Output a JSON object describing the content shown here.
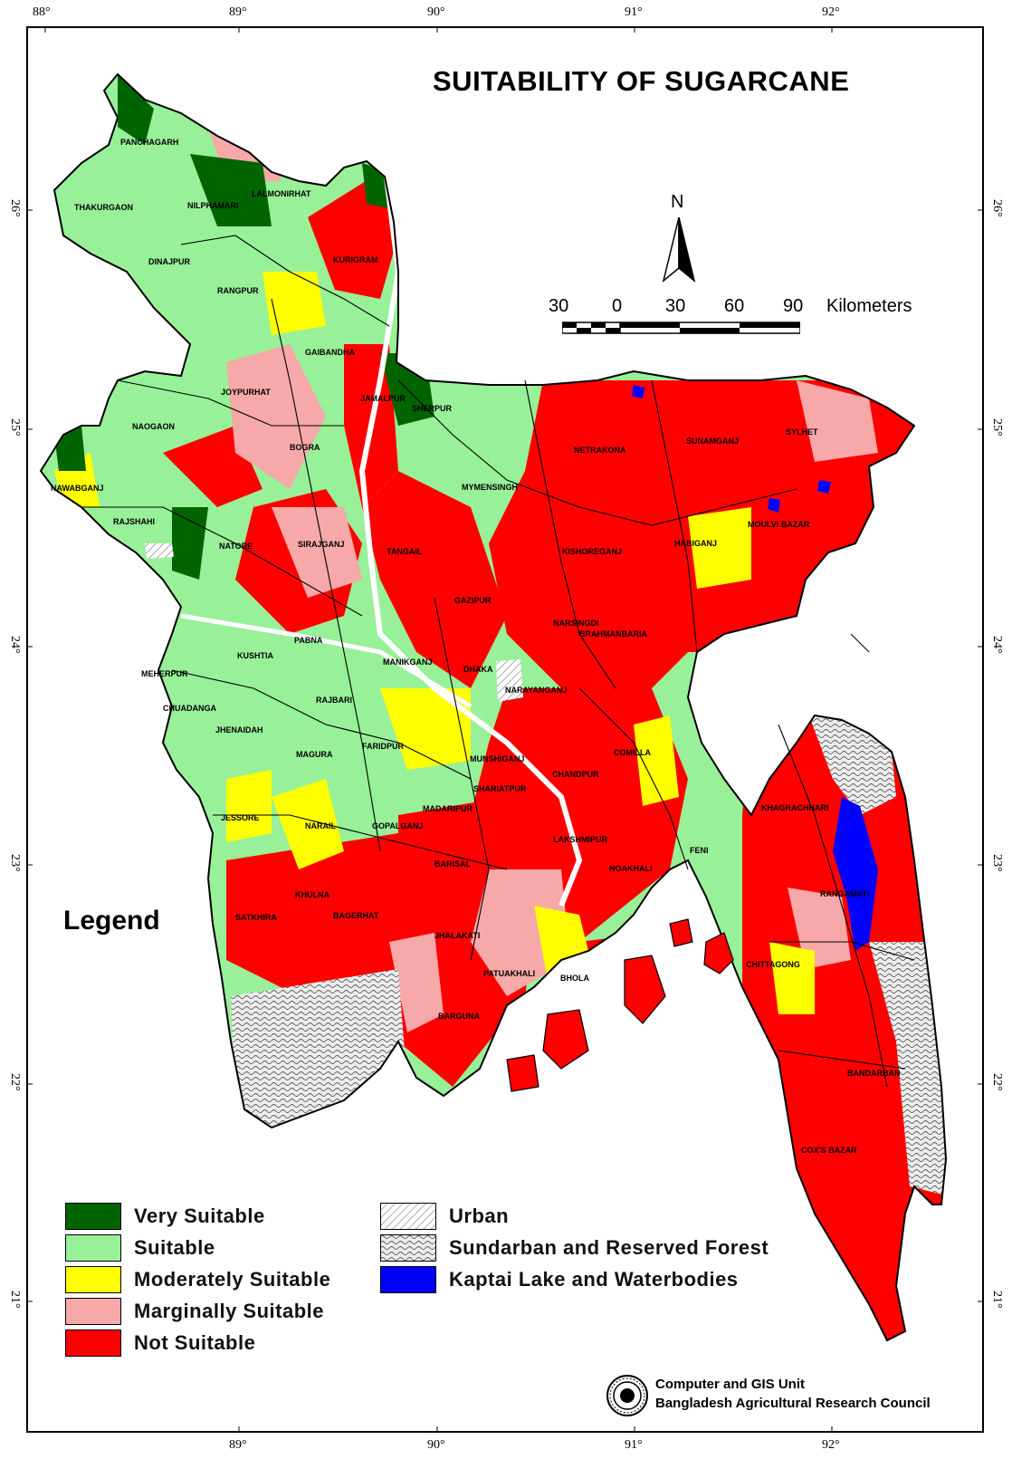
{
  "title": "SUITABILITY OF SUGARCANE",
  "graticule": {
    "longitudes": [
      "88°",
      "89°",
      "90°",
      "91°",
      "92°"
    ],
    "latitudes": [
      "26°",
      "25°",
      "24°",
      "23°",
      "22°",
      "21°"
    ]
  },
  "north_arrow": {
    "label": "N"
  },
  "scale": {
    "ticks": [
      "30",
      "0",
      "30",
      "60",
      "90"
    ],
    "unit": "Kilometers"
  },
  "districts": [
    "PANCHAGARH",
    "THAKURGAON",
    "NILPHAMARI",
    "LALMONIRHAT",
    "DINAJPUR",
    "KURIGRAM",
    "RANGPUR",
    "GAIBANDHA",
    "JOYPURHAT",
    "JAMALPUR",
    "SHERPUR",
    "NAOGAON",
    "BOGRA",
    "NAWABGANJ",
    "RAJSHAHI",
    "NATORE",
    "SIRAJGANJ",
    "TANGAIL",
    "MYMENSINGH",
    "NETRAKONA",
    "SUNAMGANJ",
    "SYLHET",
    "MOULVI BAZAR",
    "HABIGANJ",
    "KISHOREGANJ",
    "GAZIPUR",
    "NARSINGDI",
    "BRAHMANBARIA",
    "PABNA",
    "KUSHTIA",
    "MEHERPUR",
    "MANIKGANJ",
    "DHAKA",
    "NARAYANGANJ",
    "RAJBARI",
    "CHUADANGA",
    "JHENAIDAH",
    "FARIDPUR",
    "MAGURA",
    "MUNSHIGANJ",
    "COMILLA",
    "CHANDPUR",
    "SHARIATPUR",
    "MADARIPUR",
    "JESSORE",
    "NARAIL",
    "GOPALGANJ",
    "KHAGRACHHARI",
    "LAKSHMIPUR",
    "FENI",
    "BARISAL",
    "NOAKHALI",
    "KHULNA",
    "BAGERHAT",
    "SATKHIRA",
    "RANGAMATI",
    "JHALAKATI",
    "PATUAKHALI",
    "BHOLA",
    "CHITTAGONG",
    "BARGUNA",
    "BANDARBAN",
    "COX'S BAZAR"
  ],
  "legend": {
    "title": "Legend",
    "items": [
      {
        "label": "Very Suitable",
        "color": "#006400",
        "pattern": "solid"
      },
      {
        "label": "Suitable",
        "color": "#98F098",
        "pattern": "solid"
      },
      {
        "label": "Moderately Suitable",
        "color": "#FFFF00",
        "pattern": "solid"
      },
      {
        "label": "Marginally Suitable",
        "color": "#F7A8A8",
        "pattern": "solid"
      },
      {
        "label": "Not Suitable",
        "color": "#FF0000",
        "pattern": "solid"
      },
      {
        "label": "Urban",
        "color": "#FFFFFF",
        "pattern": "hatch"
      },
      {
        "label": "Sundarban and Reserved Forest",
        "color": "#E8E8E8",
        "pattern": "wave"
      },
      {
        "label": "Kaptai Lake and Waterbodies",
        "color": "#0000FF",
        "pattern": "solid"
      }
    ]
  },
  "credit": {
    "line1": "Computer and GIS Unit",
    "line2": "Bangladesh Agricultural Research Council",
    "logo": "barc-seal-logo"
  }
}
